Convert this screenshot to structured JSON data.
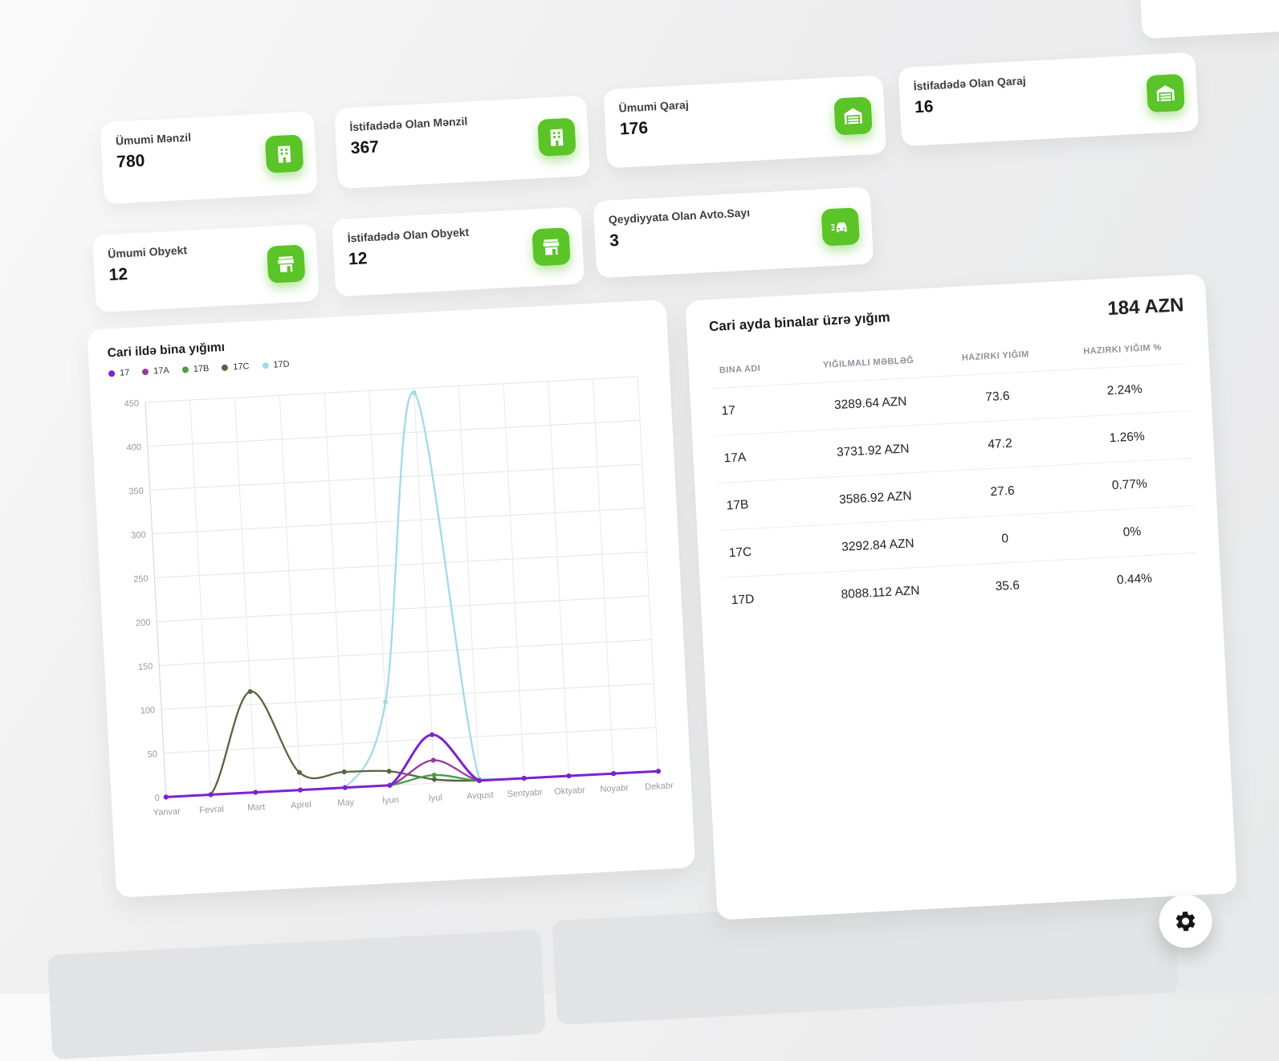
{
  "colors": {
    "accent_green": "#5bc428",
    "card_bg": "#ffffff",
    "page_bg": "#ededee"
  },
  "stat_cards": [
    {
      "label": "Ümumi Mənzil",
      "value": "780",
      "icon": "building-icon"
    },
    {
      "label": "İstifadədə Olan Mənzil",
      "value": "367",
      "icon": "building-icon"
    },
    {
      "label": "Ümumi Qaraj",
      "value": "176",
      "icon": "garage-icon"
    },
    {
      "label": "İstifadədə Olan Qaraj",
      "value": "16",
      "icon": "garage-icon"
    },
    {
      "label": "Ümumi Obyekt",
      "value": "12",
      "icon": "store-icon"
    },
    {
      "label": "İstifadədə Olan Obyekt",
      "value": "12",
      "icon": "store-icon"
    },
    {
      "label": "Qeydiyyata Olan Avto.Sayı",
      "value": "3",
      "icon": "car-icon"
    }
  ],
  "chart_data": {
    "type": "line",
    "title": "Cari ildə bina yığımı",
    "x_labels": [
      "Yanvar",
      "Fevral",
      "Mart",
      "Aprel",
      "May",
      "İyun",
      "İyul",
      "Avqust",
      "Sentyabr",
      "Oktyabr",
      "Noyabr",
      "Dekabr"
    ],
    "y_ticks": [
      0,
      50,
      100,
      150,
      200,
      250,
      300,
      350,
      400,
      450
    ],
    "ylim": [
      0,
      450
    ],
    "grid": true,
    "legend_position": "top-left",
    "series": [
      {
        "name": "17",
        "color": "#7e22ce",
        "values": [
          0,
          0,
          0,
          0,
          0,
          0,
          55,
          0,
          0,
          0,
          0,
          0
        ]
      },
      {
        "name": "17A",
        "color": "#99399f",
        "values": [
          0,
          0,
          0,
          0,
          0,
          0,
          26,
          0,
          0,
          0,
          0,
          0
        ]
      },
      {
        "name": "17B",
        "color": "#43a047",
        "values": [
          0,
          0,
          0,
          0,
          0,
          0,
          9,
          0,
          0,
          0,
          0,
          0
        ]
      },
      {
        "name": "17C",
        "color": "#56663f",
        "values": [
          0,
          0,
          115,
          20,
          18,
          16,
          4,
          0,
          0,
          0,
          0,
          0
        ]
      },
      {
        "name": "17D",
        "color": "#a4d9ea",
        "values": [
          0,
          0,
          0,
          0,
          0,
          95,
          445,
          2,
          0,
          0,
          0,
          0
        ]
      }
    ]
  },
  "table_panel": {
    "title": "Cari ayda binalar üzrə yığım",
    "total": "184 AZN",
    "columns": [
      "BINA ADI",
      "YIĞILMALI MƏBLƏĞ",
      "HAZIRKI YIĞIM",
      "HAZIRKI YIĞIM %"
    ],
    "rows": [
      {
        "bina": "17",
        "amount": "3289.64 AZN",
        "current": "73.6",
        "percent": "2.24%"
      },
      {
        "bina": "17A",
        "amount": "3731.92 AZN",
        "current": "47.2",
        "percent": "1.26%"
      },
      {
        "bina": "17B",
        "amount": "3586.92 AZN",
        "current": "27.6",
        "percent": "0.77%"
      },
      {
        "bina": "17C",
        "amount": "3292.84 AZN",
        "current": "0",
        "percent": "0%"
      },
      {
        "bina": "17D",
        "amount": "8088.112 AZN",
        "current": "35.6",
        "percent": "0.44%"
      }
    ]
  },
  "fab": {
    "icon": "gear-icon"
  }
}
